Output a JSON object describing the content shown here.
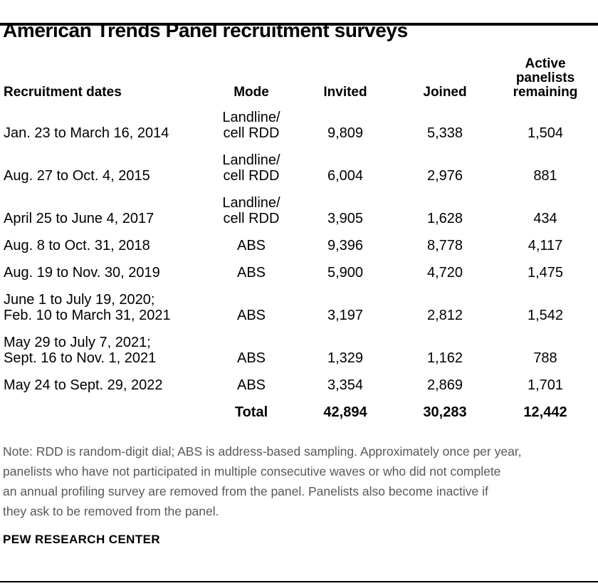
{
  "title": "American Trends Panel recruitment surveys",
  "table": {
    "headers": [
      "Recruitment dates",
      "Mode",
      "Invited",
      "Joined",
      "Active\npanelists\nremaining"
    ],
    "rows": [
      {
        "dates": "Jan. 23 to March 16, 2014",
        "mode": "Landline/\ncell RDD",
        "invited": "9,809",
        "joined": "5,338",
        "remaining": "1,504"
      },
      {
        "dates": "Aug. 27 to Oct. 4, 2015",
        "mode": "Landline/\ncell RDD",
        "invited": "6,004",
        "joined": "2,976",
        "remaining": "881"
      },
      {
        "dates": "April 25 to June 4, 2017",
        "mode": "Landline/\ncell RDD",
        "invited": "3,905",
        "joined": "1,628",
        "remaining": "434"
      },
      {
        "dates": "Aug. 8 to Oct. 31, 2018",
        "mode": "ABS",
        "invited": "9,396",
        "joined": "8,778",
        "remaining": "4,117"
      },
      {
        "dates": "Aug. 19 to Nov. 30, 2019",
        "mode": "ABS",
        "invited": "5,900",
        "joined": "4,720",
        "remaining": "1,475"
      },
      {
        "dates": "June 1 to July 19, 2020;\nFeb. 10 to March 31, 2021",
        "mode": "ABS",
        "invited": "3,197",
        "joined": "2,812",
        "remaining": "1,542"
      },
      {
        "dates": "May 29 to July 7, 2021;\nSept. 16 to Nov. 1, 2021",
        "mode": "ABS",
        "invited": "1,329",
        "joined": "1,162",
        "remaining": "788"
      },
      {
        "dates": "May 24 to Sept. 29, 2022",
        "mode": "ABS",
        "invited": "3,354",
        "joined": "2,869",
        "remaining": "1,701"
      }
    ],
    "total": {
      "label": "Total",
      "invited": "42,894",
      "joined": "30,283",
      "remaining": "12,442"
    }
  },
  "note": "Note: RDD is random-digit dial; ABS is address-based sampling. Approximately once per year,\npanelists who have not participated in multiple consecutive waves or who did not complete\nan annual profiling survey are removed from the panel. Panelists also become inactive if\nthey ask to be removed from the panel.",
  "source": "PEW RESEARCH CENTER",
  "colors": {
    "text": "#000000",
    "note_gray": "#58585a",
    "rule": "#000000",
    "background": "#ffffff"
  },
  "chart_data": {
    "type": "table",
    "title": "American Trends Panel recruitment surveys",
    "columns": [
      "Recruitment dates",
      "Mode",
      "Invited",
      "Joined",
      "Active panelists remaining"
    ],
    "rows": [
      [
        "Jan. 23 to March 16, 2014",
        "Landline/cell RDD",
        9809,
        5338,
        1504
      ],
      [
        "Aug. 27 to Oct. 4, 2015",
        "Landline/cell RDD",
        6004,
        2976,
        881
      ],
      [
        "April 25 to June 4, 2017",
        "Landline/cell RDD",
        3905,
        1628,
        434
      ],
      [
        "Aug. 8 to Oct. 31, 2018",
        "ABS",
        9396,
        8778,
        4117
      ],
      [
        "Aug. 19 to Nov. 30, 2019",
        "ABS",
        5900,
        4720,
        1475
      ],
      [
        "June 1 to July 19, 2020; Feb. 10 to March 31, 2021",
        "ABS",
        3197,
        2812,
        1542
      ],
      [
        "May 29 to July 7, 2021; Sept. 16 to Nov. 1, 2021",
        "ABS",
        1329,
        1162,
        788
      ],
      [
        "May 24 to Sept. 29, 2022",
        "ABS",
        3354,
        2869,
        1701
      ]
    ],
    "totals": {
      "label": "Total",
      "invited": 42894,
      "joined": 30283,
      "active_panelists_remaining": 12442
    }
  }
}
